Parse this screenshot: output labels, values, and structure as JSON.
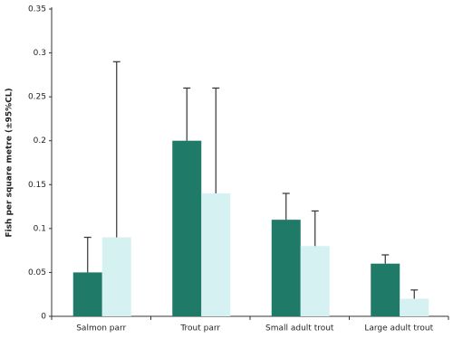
{
  "chart_data": {
    "type": "bar",
    "y_label": "Fish per square metre (±95%CL)",
    "categories": [
      "Salmon parr",
      "Trout parr",
      "Small adult trout",
      "Large adult trout"
    ],
    "series": [
      {
        "color": "#1f7a68",
        "values": [
          0.05,
          0.2,
          0.11,
          0.06
        ],
        "errors": [
          0.04,
          0.06,
          0.03,
          0.01
        ]
      },
      {
        "color": "#d6f1f1",
        "values": [
          0.09,
          0.14,
          0.08,
          0.02
        ],
        "errors": [
          0.2,
          0.12,
          0.04,
          0.01
        ]
      }
    ],
    "ylim": [
      0,
      0.35
    ],
    "yticks": [
      0,
      0.05,
      0.1,
      0.15,
      0.2,
      0.25,
      0.3,
      0.35
    ]
  }
}
